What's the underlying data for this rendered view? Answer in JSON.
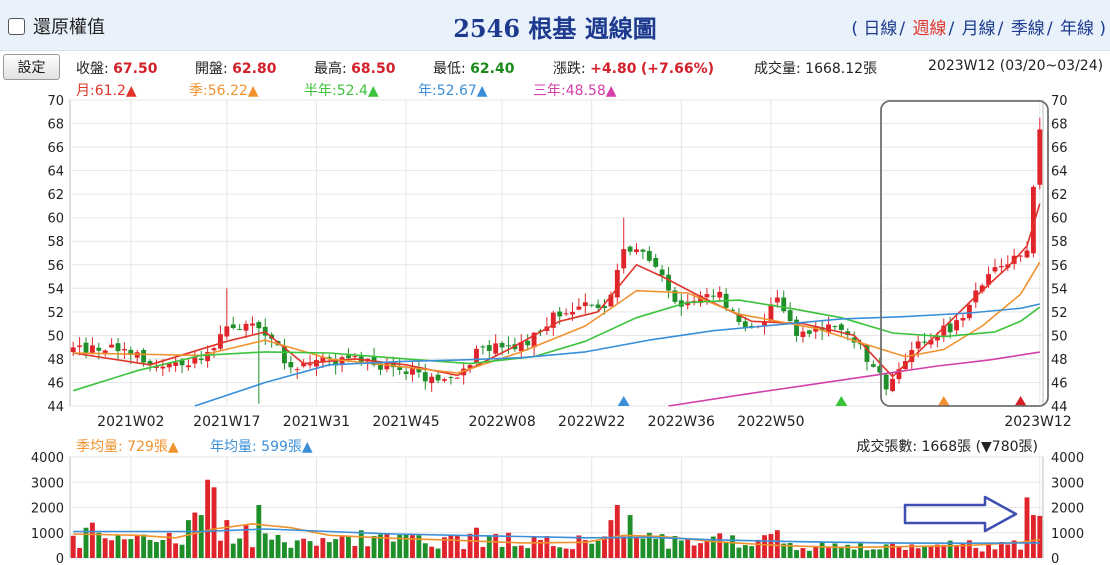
{
  "header": {
    "restore_label": "還原權值",
    "title": "2546 根基  週線圖",
    "periods": [
      {
        "label": "日線",
        "selected": false
      },
      {
        "label": "週線",
        "selected": true
      },
      {
        "label": "月線",
        "selected": false
      },
      {
        "label": "季線",
        "selected": false
      },
      {
        "label": "年線",
        "selected": false
      }
    ],
    "open_paren": "(",
    "close_paren": ")"
  },
  "toolbar": {
    "settings_label": "設定"
  },
  "quote": {
    "close_label": "收盤:",
    "close": "67.50",
    "open_label": "開盤:",
    "open": "62.80",
    "high_label": "最高:",
    "high": "68.50",
    "low_label": "最低:",
    "low": "62.40",
    "change_label": "漲跌:",
    "change": "+4.80",
    "change_pct": "(+7.66%)",
    "volume_label": "成交量:",
    "volume": "1668.12張",
    "period": "2023W12 (03/20~03/24)"
  },
  "moving_averages": [
    {
      "label": "月:61.2▲",
      "color": "#e0342a"
    },
    {
      "label": "季:56.22▲",
      "color": "#f0922e"
    },
    {
      "label": "半年:52.4▲",
      "color": "#3cc33c"
    },
    {
      "label": "年:52.67▲",
      "color": "#3a8fd8"
    },
    {
      "label": "三年:48.58▲",
      "color": "#d43fa8"
    }
  ],
  "volume_legend": {
    "quarter_avg": "季均量: 729張▲",
    "year_avg": "年均量: 599張▲",
    "quarter_color": "#f0922e",
    "year_color": "#3a8fd8",
    "count": "成交張數: 1668張 (▼780張)"
  },
  "chart_data": [
    {
      "type": "candlestick",
      "ylim": [
        44,
        70
      ],
      "yticks": [
        "44",
        "46",
        "48",
        "50",
        "52",
        "54",
        "56",
        "58",
        "60",
        "62",
        "64",
        "66",
        "68",
        "70"
      ],
      "xticks": [
        "2021W02",
        "2021W17",
        "2021W31",
        "2021W45",
        "2022W08",
        "2022W22",
        "2022W36",
        "2022W50",
        "2023W12"
      ],
      "anchors": [
        {
          "w": 0,
          "c": 48.6
        },
        {
          "w": 6,
          "c": 49.0
        },
        {
          "w": 10,
          "c": 48.6
        },
        {
          "w": 13,
          "c": 47.2
        },
        {
          "w": 16,
          "c": 47.6
        },
        {
          "w": 21,
          "c": 48.3
        },
        {
          "w": 24,
          "c": 50.6
        },
        {
          "w": 28,
          "c": 51.0
        },
        {
          "w": 31,
          "c": 50.2
        },
        {
          "w": 33,
          "c": 47.5
        },
        {
          "w": 36,
          "c": 47.3
        },
        {
          "w": 40,
          "c": 47.8
        },
        {
          "w": 44,
          "c": 48.3
        },
        {
          "w": 48,
          "c": 47.3
        },
        {
          "w": 52,
          "c": 47.2
        },
        {
          "w": 56,
          "c": 46.3
        },
        {
          "w": 60,
          "c": 46.6
        },
        {
          "w": 64,
          "c": 49.0
        },
        {
          "w": 68,
          "c": 48.7
        },
        {
          "w": 72,
          "c": 49.8
        },
        {
          "w": 76,
          "c": 52.0
        },
        {
          "w": 80,
          "c": 52.5
        },
        {
          "w": 83,
          "c": 52.0
        },
        {
          "w": 86,
          "c": 57.0
        },
        {
          "w": 89,
          "c": 57.0
        },
        {
          "w": 92,
          "c": 55.0
        },
        {
          "w": 95,
          "c": 52.5
        },
        {
          "w": 98,
          "c": 53.5
        },
        {
          "w": 101,
          "c": 53.5
        },
        {
          "w": 104,
          "c": 51.0
        },
        {
          "w": 107,
          "c": 50.5
        },
        {
          "w": 110,
          "c": 53.5
        },
        {
          "w": 113,
          "c": 50.0
        },
        {
          "w": 116,
          "c": 50.7
        },
        {
          "w": 119,
          "c": 51.0
        },
        {
          "w": 122,
          "c": 49.5
        },
        {
          "w": 125,
          "c": 47.5
        },
        {
          "w": 127,
          "c": 45.8
        },
        {
          "w": 129,
          "c": 47.5
        },
        {
          "w": 132,
          "c": 49.5
        },
        {
          "w": 135,
          "c": 50.2
        },
        {
          "w": 138,
          "c": 51.0
        },
        {
          "w": 141,
          "c": 53.5
        },
        {
          "w": 144,
          "c": 55.5
        },
        {
          "w": 147,
          "c": 56.3
        },
        {
          "w": 149,
          "c": 57.5
        },
        {
          "w": 150,
          "c": 62.7
        },
        {
          "w": 151,
          "c": 67.5
        }
      ],
      "ma_lines": [
        {
          "name": "月",
          "color": "#e0342a",
          "points": [
            [
              0,
              48.5
            ],
            [
              12,
              47.5
            ],
            [
              24,
              49.5
            ],
            [
              30,
              50.3
            ],
            [
              36,
              47.6
            ],
            [
              44,
              48.0
            ],
            [
              52,
              47.5
            ],
            [
              60,
              46.6
            ],
            [
              68,
              48.8
            ],
            [
              76,
              51.2
            ],
            [
              82,
              52.0
            ],
            [
              88,
              56.0
            ],
            [
              92,
              55.0
            ],
            [
              98,
              53.3
            ],
            [
              106,
              51.2
            ],
            [
              114,
              51.0
            ],
            [
              122,
              50.0
            ],
            [
              128,
              46.5
            ],
            [
              134,
              49.6
            ],
            [
              140,
              52.8
            ],
            [
              146,
              55.8
            ],
            [
              149,
              57.6
            ],
            [
              151,
              61.2
            ]
          ]
        },
        {
          "name": "季",
          "color": "#f0922e",
          "points": [
            [
              0,
              48.5
            ],
            [
              20,
              48.3
            ],
            [
              30,
              49.6
            ],
            [
              40,
              48.0
            ],
            [
              52,
              47.3
            ],
            [
              60,
              46.8
            ],
            [
              70,
              48.6
            ],
            [
              80,
              50.8
            ],
            [
              88,
              53.8
            ],
            [
              96,
              53.6
            ],
            [
              104,
              51.8
            ],
            [
              116,
              50.6
            ],
            [
              124,
              49.2
            ],
            [
              130,
              48.2
            ],
            [
              136,
              48.8
            ],
            [
              142,
              50.8
            ],
            [
              148,
              53.5
            ],
            [
              151,
              56.22
            ]
          ]
        },
        {
          "name": "半年",
          "color": "#3cc33c",
          "points": [
            [
              0,
              45.3
            ],
            [
              10,
              47.0
            ],
            [
              20,
              48.3
            ],
            [
              30,
              48.6
            ],
            [
              40,
              48.5
            ],
            [
              52,
              48.0
            ],
            [
              62,
              47.6
            ],
            [
              72,
              48.2
            ],
            [
              80,
              49.5
            ],
            [
              88,
              51.5
            ],
            [
              96,
              52.8
            ],
            [
              104,
              53.0
            ],
            [
              112,
              52.3
            ],
            [
              120,
              51.5
            ],
            [
              128,
              50.2
            ],
            [
              136,
              49.9
            ],
            [
              144,
              50.3
            ],
            [
              148,
              51.2
            ],
            [
              151,
              52.4
            ]
          ]
        },
        {
          "name": "年",
          "color": "#3a8fd8",
          "points": [
            [
              19,
              44.0
            ],
            [
              30,
              46.0
            ],
            [
              40,
              47.5
            ],
            [
              52,
              47.8
            ],
            [
              60,
              47.9
            ],
            [
              70,
              48.1
            ],
            [
              80,
              48.6
            ],
            [
              90,
              49.6
            ],
            [
              100,
              50.4
            ],
            [
              110,
              50.9
            ],
            [
              120,
              51.4
            ],
            [
              130,
              51.6
            ],
            [
              140,
              51.9
            ],
            [
              148,
              52.3
            ],
            [
              151,
              52.67
            ]
          ]
        },
        {
          "name": "三年",
          "color": "#d43fa8",
          "points": [
            [
              93,
              44.0
            ],
            [
              105,
              45.0
            ],
            [
              115,
              45.8
            ],
            [
              125,
              46.6
            ],
            [
              135,
              47.4
            ],
            [
              143,
              47.9
            ],
            [
              151,
              48.58
            ]
          ]
        }
      ],
      "markers": [
        {
          "w": 86,
          "color": "#3a8fd8"
        },
        {
          "w": 120,
          "color": "#3cc33c"
        },
        {
          "w": 136,
          "color": "#f0922e"
        },
        {
          "w": 148,
          "color": "#d4202a"
        }
      ]
    },
    {
      "type": "bar",
      "ylim": [
        0,
        4000
      ],
      "yticks": [
        "0",
        "1000",
        "2000",
        "3000",
        "4000"
      ],
      "spikes": [
        {
          "w": 2,
          "v": 1200
        },
        {
          "w": 3,
          "v": 1400
        },
        {
          "w": 4,
          "v": 1000
        },
        {
          "w": 18,
          "v": 1500
        },
        {
          "w": 19,
          "v": 1800
        },
        {
          "w": 20,
          "v": 1700
        },
        {
          "w": 21,
          "v": 3100
        },
        {
          "w": 22,
          "v": 2800
        },
        {
          "w": 24,
          "v": 1500
        },
        {
          "w": 27,
          "v": 1300
        },
        {
          "w": 29,
          "v": 2100
        },
        {
          "w": 45,
          "v": 1100
        },
        {
          "w": 63,
          "v": 1200
        },
        {
          "w": 84,
          "v": 1500
        },
        {
          "w": 85,
          "v": 2100
        },
        {
          "w": 87,
          "v": 1700
        },
        {
          "w": 110,
          "v": 1100
        },
        {
          "w": 140,
          "v": 700
        },
        {
          "w": 149,
          "v": 2400
        },
        {
          "w": 150,
          "v": 1700
        }
      ],
      "avg_lines": [
        {
          "name": "季均量",
          "color": "#f0922e",
          "points": [
            [
              0,
              950
            ],
            [
              10,
              900
            ],
            [
              16,
              800
            ],
            [
              22,
              1150
            ],
            [
              28,
              1350
            ],
            [
              34,
              1200
            ],
            [
              40,
              900
            ],
            [
              50,
              780
            ],
            [
              60,
              700
            ],
            [
              70,
              600
            ],
            [
              80,
              620
            ],
            [
              86,
              900
            ],
            [
              92,
              850
            ],
            [
              100,
              650
            ],
            [
              110,
              500
            ],
            [
              120,
              420
            ],
            [
              130,
              450
            ],
            [
              140,
              500
            ],
            [
              148,
              620
            ],
            [
              151,
              729
            ]
          ]
        },
        {
          "name": "年均量",
          "color": "#3a8fd8",
          "points": [
            [
              0,
              1050
            ],
            [
              20,
              1050
            ],
            [
              30,
              1150
            ],
            [
              40,
              1050
            ],
            [
              50,
              950
            ],
            [
              60,
              900
            ],
            [
              70,
              850
            ],
            [
              80,
              800
            ],
            [
              90,
              820
            ],
            [
              100,
              720
            ],
            [
              110,
              660
            ],
            [
              120,
              620
            ],
            [
              130,
              590
            ],
            [
              140,
              585
            ],
            [
              151,
              599
            ]
          ]
        }
      ]
    }
  ]
}
